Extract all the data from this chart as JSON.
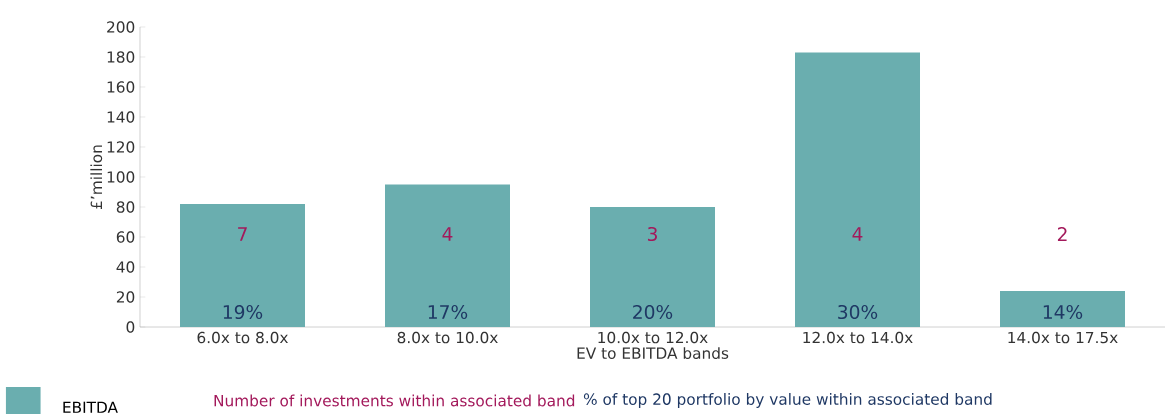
{
  "chart_data": {
    "type": "bar",
    "xlabel": "EV to EBITDA bands",
    "ylabel": "£’million",
    "categories": [
      "6.0x to 8.0x",
      "8.0x to 10.0x",
      "10.0x to 12.0x",
      "12.0x to 14.0x",
      "14.0x to 17.5x"
    ],
    "series": [
      {
        "name": "EBITDA",
        "color": "#6aaeaf",
        "values": [
          82,
          95,
          80,
          183,
          24
        ]
      }
    ],
    "ylim": [
      0,
      200
    ],
    "yticks": [
      0,
      20,
      40,
      60,
      80,
      100,
      120,
      140,
      160,
      180,
      200
    ],
    "legend": "bottom",
    "annotations": [
      "Number of investments within associated band",
      "% of top 20 portfolio by value within associated band",
      "7",
      "4",
      "3",
      "4",
      "2",
      "19%",
      "17%",
      "20%",
      "30%",
      "14%"
    ]
  }
}
